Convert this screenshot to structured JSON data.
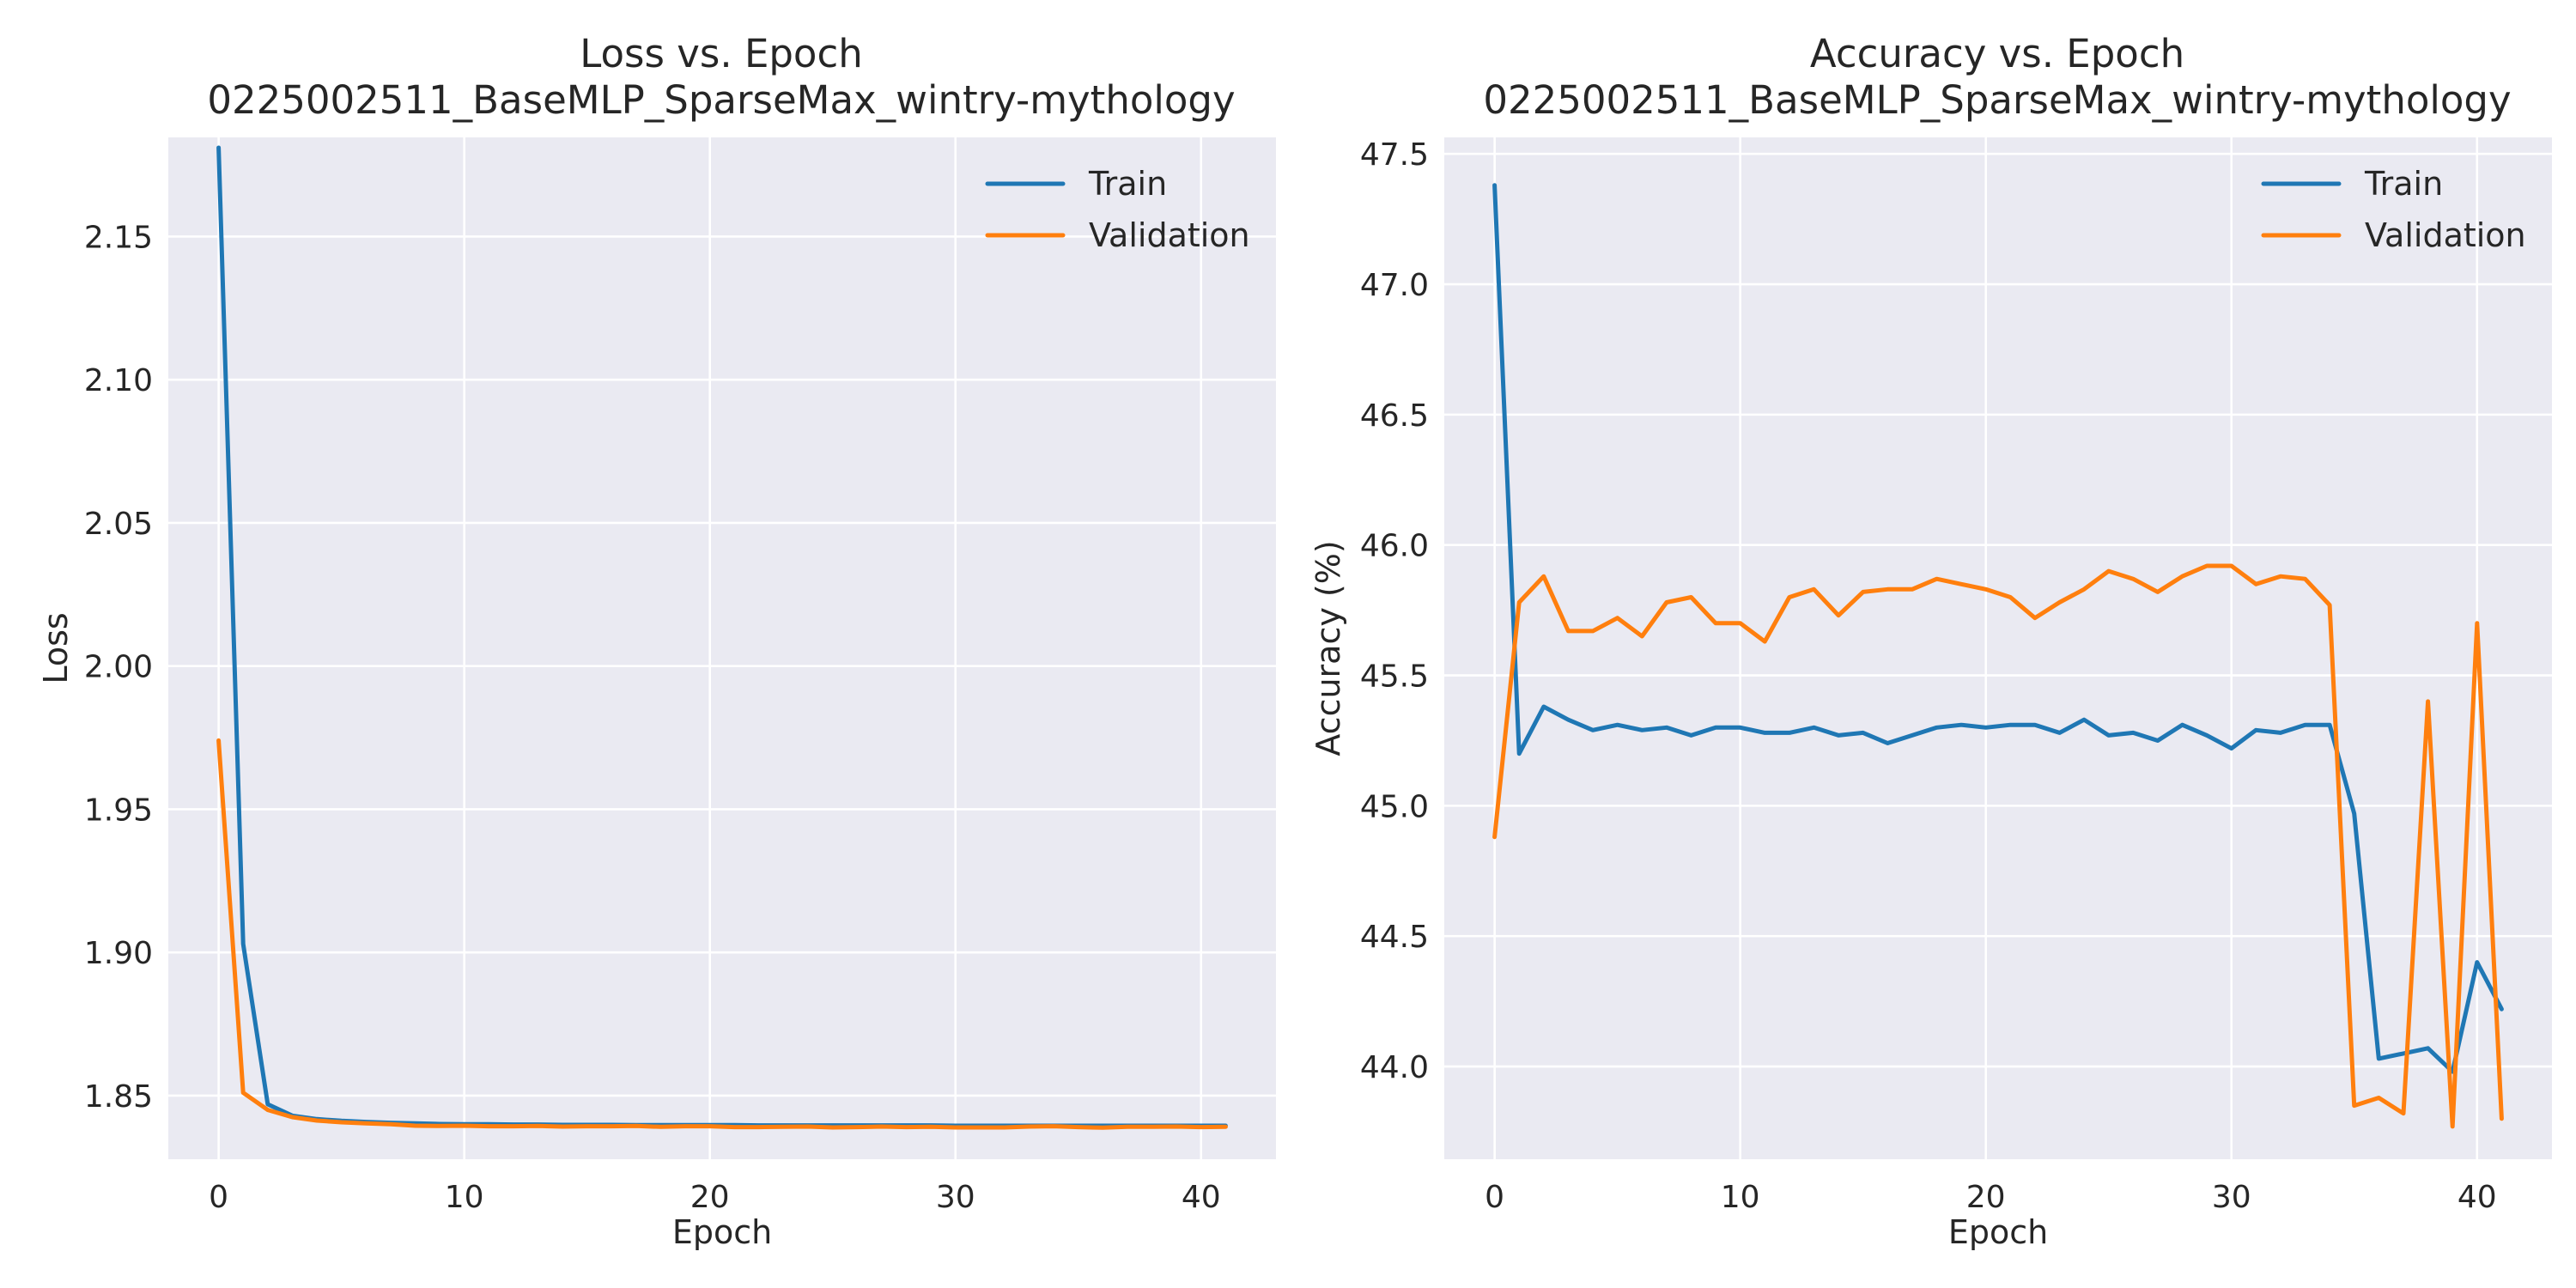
{
  "chart_data": [
    {
      "type": "line",
      "title": "Loss vs. Epoch",
      "subtitle": "0225002511_BaseMLP_SparseMax_wintry-mythology",
      "xlabel": "Epoch",
      "ylabel": "Loss",
      "xlim": [
        -2.05,
        43.05
      ],
      "ylim": [
        1.8278,
        2.1846
      ],
      "xticks": [
        0,
        10,
        20,
        30,
        40
      ],
      "yticks": [
        1.85,
        1.9,
        1.95,
        2.0,
        2.05,
        2.1,
        2.15
      ],
      "ytick_labels": [
        "1.85",
        "1.90",
        "1.95",
        "2.00",
        "2.05",
        "2.10",
        "2.15"
      ],
      "grid": true,
      "legend": "top-right",
      "x": [
        0,
        1,
        2,
        3,
        4,
        5,
        6,
        7,
        8,
        9,
        10,
        11,
        12,
        13,
        14,
        15,
        16,
        17,
        18,
        19,
        20,
        21,
        22,
        23,
        24,
        25,
        26,
        27,
        28,
        29,
        30,
        31,
        32,
        33,
        34,
        35,
        36,
        37,
        38,
        39,
        40,
        41
      ],
      "series": [
        {
          "name": "Train",
          "color": "#1f77b4",
          "values": [
            2.181,
            1.903,
            1.847,
            1.843,
            1.8418,
            1.8412,
            1.8408,
            1.8405,
            1.8403,
            1.8401,
            1.84,
            1.84,
            1.8399,
            1.8399,
            1.8398,
            1.8398,
            1.8398,
            1.8397,
            1.8397,
            1.8397,
            1.8397,
            1.8397,
            1.8396,
            1.8396,
            1.8396,
            1.8396,
            1.8396,
            1.8396,
            1.8396,
            1.8396,
            1.8395,
            1.8395,
            1.8395,
            1.8395,
            1.8395,
            1.8395,
            1.8395,
            1.8395,
            1.8395,
            1.8395,
            1.8395,
            1.8395
          ]
        },
        {
          "name": "Validation",
          "color": "#ff7f0e",
          "values": [
            1.974,
            1.851,
            1.845,
            1.8425,
            1.8413,
            1.8407,
            1.8403,
            1.84,
            1.8395,
            1.8394,
            1.8395,
            1.8393,
            1.8393,
            1.8394,
            1.8392,
            1.8393,
            1.8393,
            1.8394,
            1.8391,
            1.8393,
            1.8393,
            1.839,
            1.839,
            1.8391,
            1.8392,
            1.8389,
            1.839,
            1.8392,
            1.839,
            1.8391,
            1.8389,
            1.8389,
            1.8389,
            1.8392,
            1.8393,
            1.839,
            1.8388,
            1.8391,
            1.8391,
            1.8392,
            1.839,
            1.8391
          ]
        }
      ]
    },
    {
      "type": "line",
      "title": "Accuracy vs. Epoch",
      "subtitle": "0225002511_BaseMLP_SparseMax_wintry-mythology",
      "xlabel": "Epoch",
      "ylabel": "Accuracy (%)",
      "xlim": [
        -2.05,
        43.05
      ],
      "ylim": [
        43.6445,
        47.5633
      ],
      "xticks": [
        0,
        10,
        20,
        30,
        40
      ],
      "yticks": [
        44.0,
        44.5,
        45.0,
        45.5,
        46.0,
        46.5,
        47.0,
        47.5
      ],
      "ytick_labels": [
        "44.0",
        "44.5",
        "45.0",
        "45.5",
        "46.0",
        "46.5",
        "47.0",
        "47.5"
      ],
      "grid": true,
      "legend": "top-right",
      "x": [
        0,
        1,
        2,
        3,
        4,
        5,
        6,
        7,
        8,
        9,
        10,
        11,
        12,
        13,
        14,
        15,
        16,
        17,
        18,
        19,
        20,
        21,
        22,
        23,
        24,
        25,
        26,
        27,
        28,
        29,
        30,
        31,
        32,
        33,
        34,
        35,
        36,
        37,
        38,
        39,
        40,
        41
      ],
      "series": [
        {
          "name": "Train",
          "color": "#1f77b4",
          "values": [
            47.38,
            45.2,
            45.38,
            45.33,
            45.29,
            45.31,
            45.29,
            45.3,
            45.27,
            45.3,
            45.3,
            45.28,
            45.28,
            45.3,
            45.27,
            45.28,
            45.24,
            45.27,
            45.3,
            45.31,
            45.3,
            45.31,
            45.31,
            45.28,
            45.33,
            45.27,
            45.28,
            45.25,
            45.31,
            45.27,
            45.22,
            45.29,
            45.28,
            45.31,
            45.31,
            44.97,
            44.03,
            44.05,
            44.07,
            43.98,
            44.4,
            44.22
          ]
        },
        {
          "name": "Validation",
          "color": "#ff7f0e",
          "values": [
            44.88,
            45.78,
            45.88,
            45.67,
            45.67,
            45.72,
            45.65,
            45.78,
            45.8,
            45.7,
            45.7,
            45.63,
            45.8,
            45.83,
            45.73,
            45.82,
            45.83,
            45.83,
            45.87,
            45.85,
            45.83,
            45.8,
            45.72,
            45.78,
            45.83,
            45.9,
            45.87,
            45.82,
            45.88,
            45.92,
            45.92,
            45.85,
            45.88,
            45.87,
            45.77,
            43.85,
            43.88,
            43.82,
            45.4,
            43.77,
            45.7,
            43.8
          ]
        }
      ]
    }
  ]
}
